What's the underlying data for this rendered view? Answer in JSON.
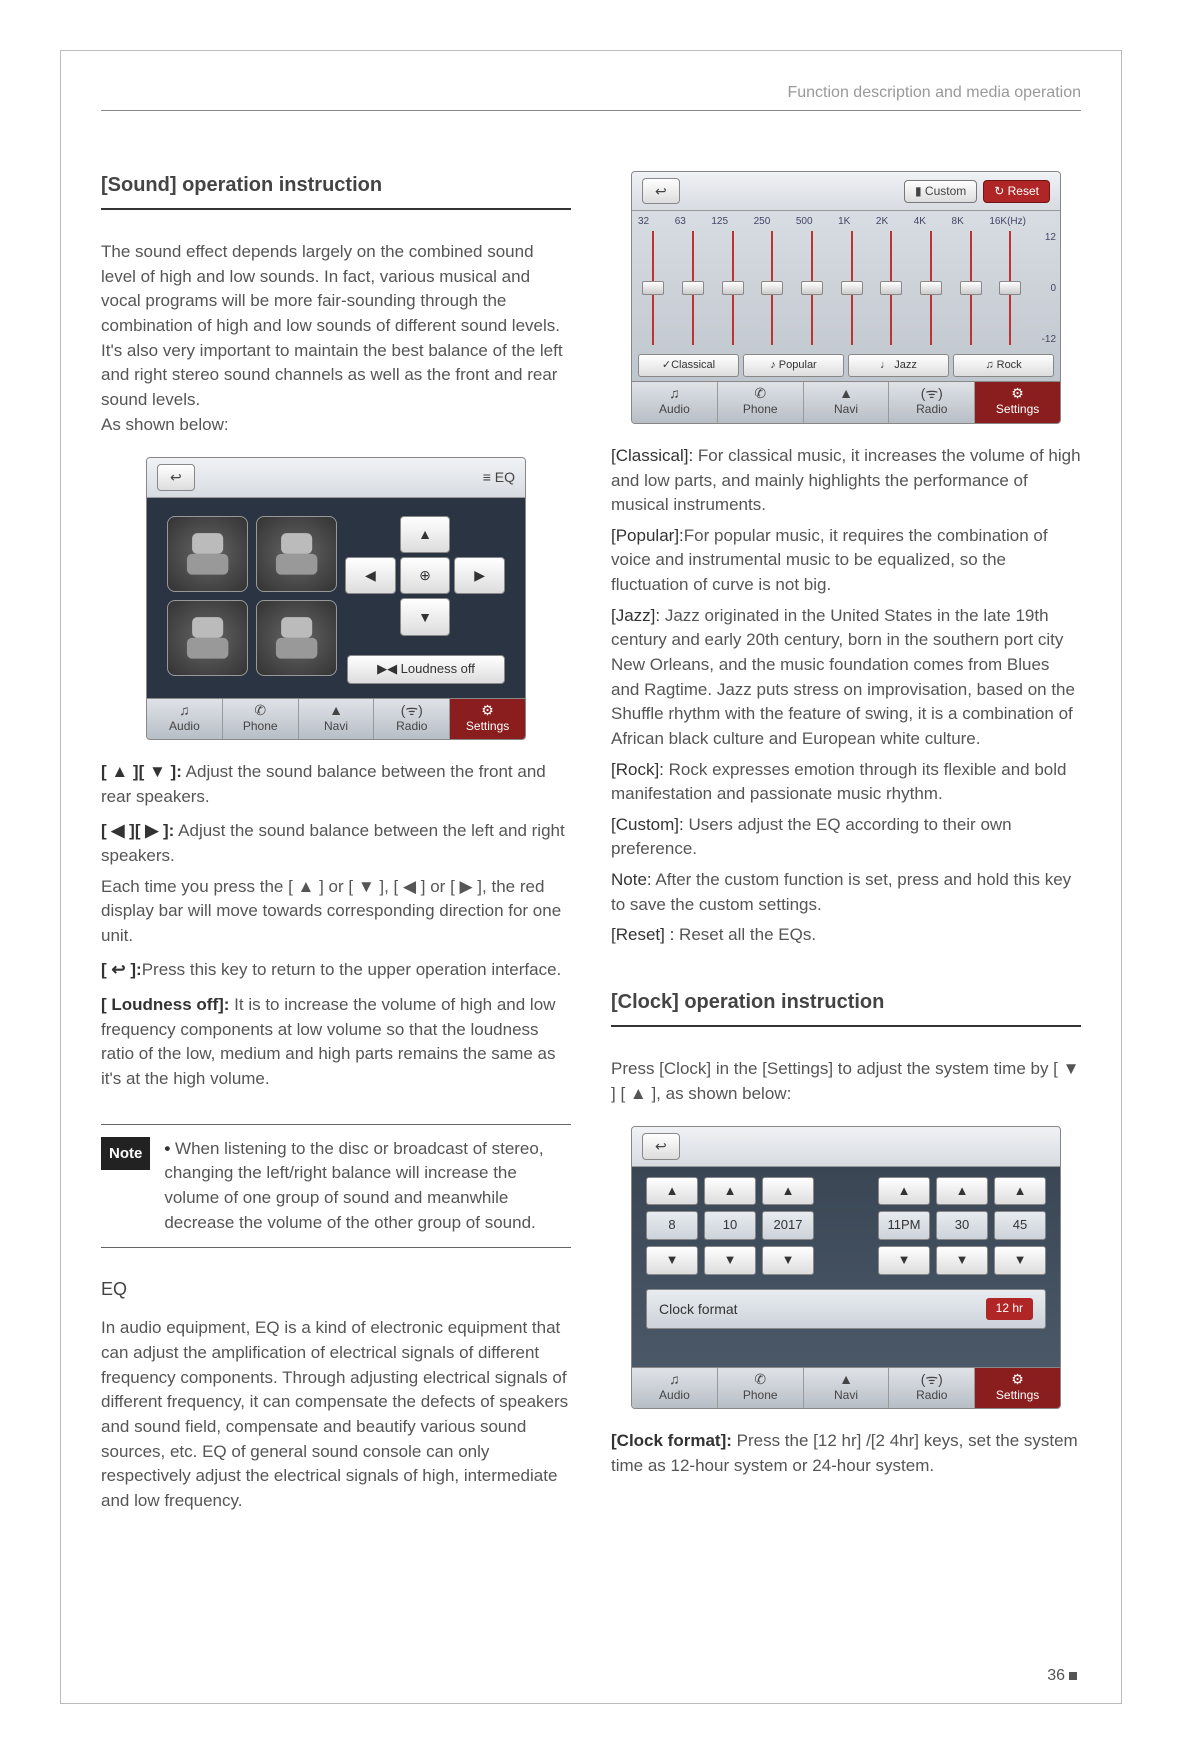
{
  "header": "Function description and media operation",
  "pagenum": "36",
  "left": {
    "title": "[Sound] operation instruction",
    "intro": "The sound effect depends largely on the combined sound level of high and low sounds. In fact, various musical and vocal programs will be more fair-sounding through the combination of high and low sounds of different sound levels. It's also very important to maintain the best balance of the left and right stereo sound channels as well as the front and rear sound levels.\nAs shown below:",
    "shot1": {
      "eq_label": "≡  EQ",
      "loudness": "▶◀ Loudness off",
      "nav": [
        "Audio",
        "Phone",
        "Navi",
        "Radio",
        "Settings"
      ],
      "nav_icons": [
        "♫",
        "✆",
        "▲",
        "(ᯤ)",
        "⚙"
      ]
    },
    "instr": [
      {
        "key": "[ ▲ ][ ▼ ]:",
        "text": " Adjust the sound balance between the front and rear speakers."
      },
      {
        "key": "[ ◀ ][ ▶ ]:",
        "text": " Adjust the sound balance between the left and right speakers."
      }
    ],
    "each": "Each time you press the  [ ▲ ] or [ ▼ ], [ ◀ ] or [ ▶ ], the red display bar will move towards corresponding direction for one unit.",
    "return": {
      "key": "[ ↩ ]:",
      "text": "Press this key to return to the upper operation interface."
    },
    "loud": {
      "key": "[ Loudness off]:",
      "text": " It is to increase the volume of high and low frequency components at low volume so that the loudness ratio of the low, medium and high parts remains the same as it's at the high volume."
    },
    "note_label": "Note",
    "note": "When listening to the disc or broadcast of stereo, changing the left/right balance will increase the volume of one group of sound and meanwhile decrease the volume of the other group of sound.",
    "eq_title": "EQ",
    "eq_text": "In audio equipment, EQ is a kind of electronic equipment that can adjust the amplification of electrical signals of different frequency components. Through adjusting electrical signals of different frequency, it can compensate the defects of speakers and sound field, compensate and beautify various sound sources, etc. EQ of general sound console can only respectively adjust the electrical signals of high, intermediate and low frequency."
  },
  "right": {
    "eq_shot": {
      "custom": "▮ Custom",
      "reset": "↻ Reset",
      "freqs": [
        "32",
        "63",
        "125",
        "250",
        "500",
        "1K",
        "2K",
        "4K",
        "8K",
        "16K(Hz)"
      ],
      "scale": [
        "12",
        "0",
        "-12"
      ],
      "slider_pos": [
        50,
        50,
        50,
        50,
        50,
        50,
        50,
        50,
        50,
        50
      ],
      "presets": [
        "✓Classical",
        "♪ Popular",
        "♩ Jazz",
        "♫ Rock"
      ],
      "nav": [
        "Audio",
        "Phone",
        "Navi",
        "Radio",
        "Settings"
      ],
      "nav_icons": [
        "♫",
        "✆",
        "▲",
        "(ᯤ)",
        "⚙"
      ]
    },
    "descs": [
      {
        "tag": "[Classical]:",
        "text": " For classical music, it increases the volume of high and low parts, and mainly highlights the performance of musical instruments."
      },
      {
        "tag": "[Popular]:",
        "text": "For popular music, it requires the combination of voice and instrumental music to be equalized, so the fluctuation of curve is not big."
      },
      {
        "tag": "[Jazz]:",
        "text": " Jazz originated in the United States in the late 19th century and early 20th century, born in the southern port city New Orleans, and the music foundation comes from Blues and Ragtime. Jazz puts stress on improvisation, based on the Shuffle rhythm with the feature of swing, it is a combination of African black culture and European white culture."
      },
      {
        "tag": "[Rock]:",
        "text": " Rock expresses emotion through its flexible and bold manifestation and passionate music rhythm."
      },
      {
        "tag": "[Custom]:",
        "text": " Users adjust the EQ according to their own preference."
      },
      {
        "tag": "Note:",
        "text": " After the custom function is set, press and hold this key to save the custom settings."
      },
      {
        "tag": "[Reset] :",
        "text": "  Reset all the EQs."
      }
    ],
    "clock_title": "[Clock] operation instruction",
    "clock_intro": "Press [Clock] in the [Settings] to adjust the system time by [ ▼ ] [ ▲ ], as shown below:",
    "clock_shot": {
      "date": [
        "8",
        "10",
        "2017"
      ],
      "time": [
        "11PM",
        "30",
        "45"
      ],
      "format_label": "Clock format",
      "format_val": "12 hr",
      "nav": [
        "Audio",
        "Phone",
        "Navi",
        "Radio",
        "Settings"
      ],
      "nav_icons": [
        "♫",
        "✆",
        "▲",
        "(ᯤ)",
        "⚙"
      ]
    },
    "clock_format": {
      "key": "[Clock format]:",
      "text": "  Press the [12 hr] /[2 4hr] keys, set the system time as 12-hour system or 24-hour system."
    }
  }
}
